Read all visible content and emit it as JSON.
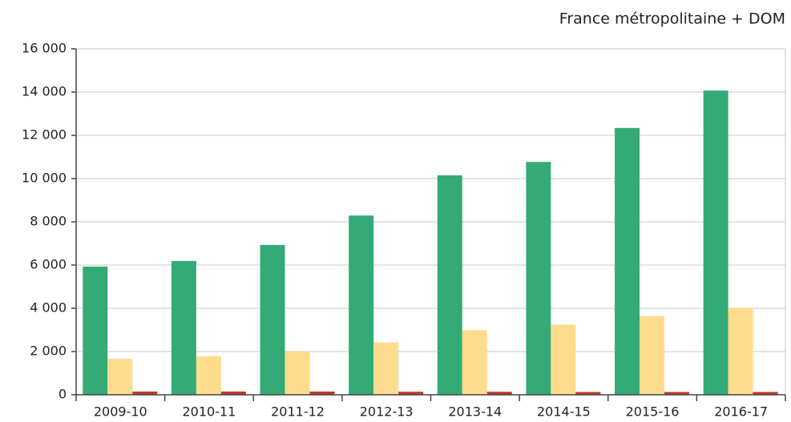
{
  "chart_data": {
    "type": "bar",
    "subtitle": "France métropolitaine + DOM",
    "categories": [
      "2009-10",
      "2010-11",
      "2011-12",
      "2012-13",
      "2013-14",
      "2014-15",
      "2015-16",
      "2016-17"
    ],
    "series": [
      {
        "color": "#34ab76",
        "values": [
          5930,
          6190,
          6930,
          8290,
          10150,
          10770,
          12340,
          14070
        ]
      },
      {
        "color": "#fddc8e",
        "values": [
          1660,
          1780,
          2000,
          2420,
          2990,
          3250,
          3640,
          4010
        ]
      },
      {
        "color": "#c0392b",
        "values": [
          150,
          150,
          150,
          140,
          140,
          130,
          130,
          130
        ]
      }
    ],
    "ylim": [
      0,
      16000
    ],
    "yticks": [
      0,
      {
        "value": 2000,
        "label": "2 000"
      },
      {
        "value": 4000,
        "label": "4 000"
      },
      {
        "value": 6000,
        "label": "6 000"
      },
      {
        "value": 8000,
        "label": "8 000"
      },
      {
        "value": 10000,
        "label": "10 000"
      },
      {
        "value": 12000,
        "label": "12 000"
      },
      {
        "value": 14000,
        "label": "14 000"
      },
      {
        "value": 16000,
        "label": "16 000"
      }
    ],
    "grid": true
  }
}
